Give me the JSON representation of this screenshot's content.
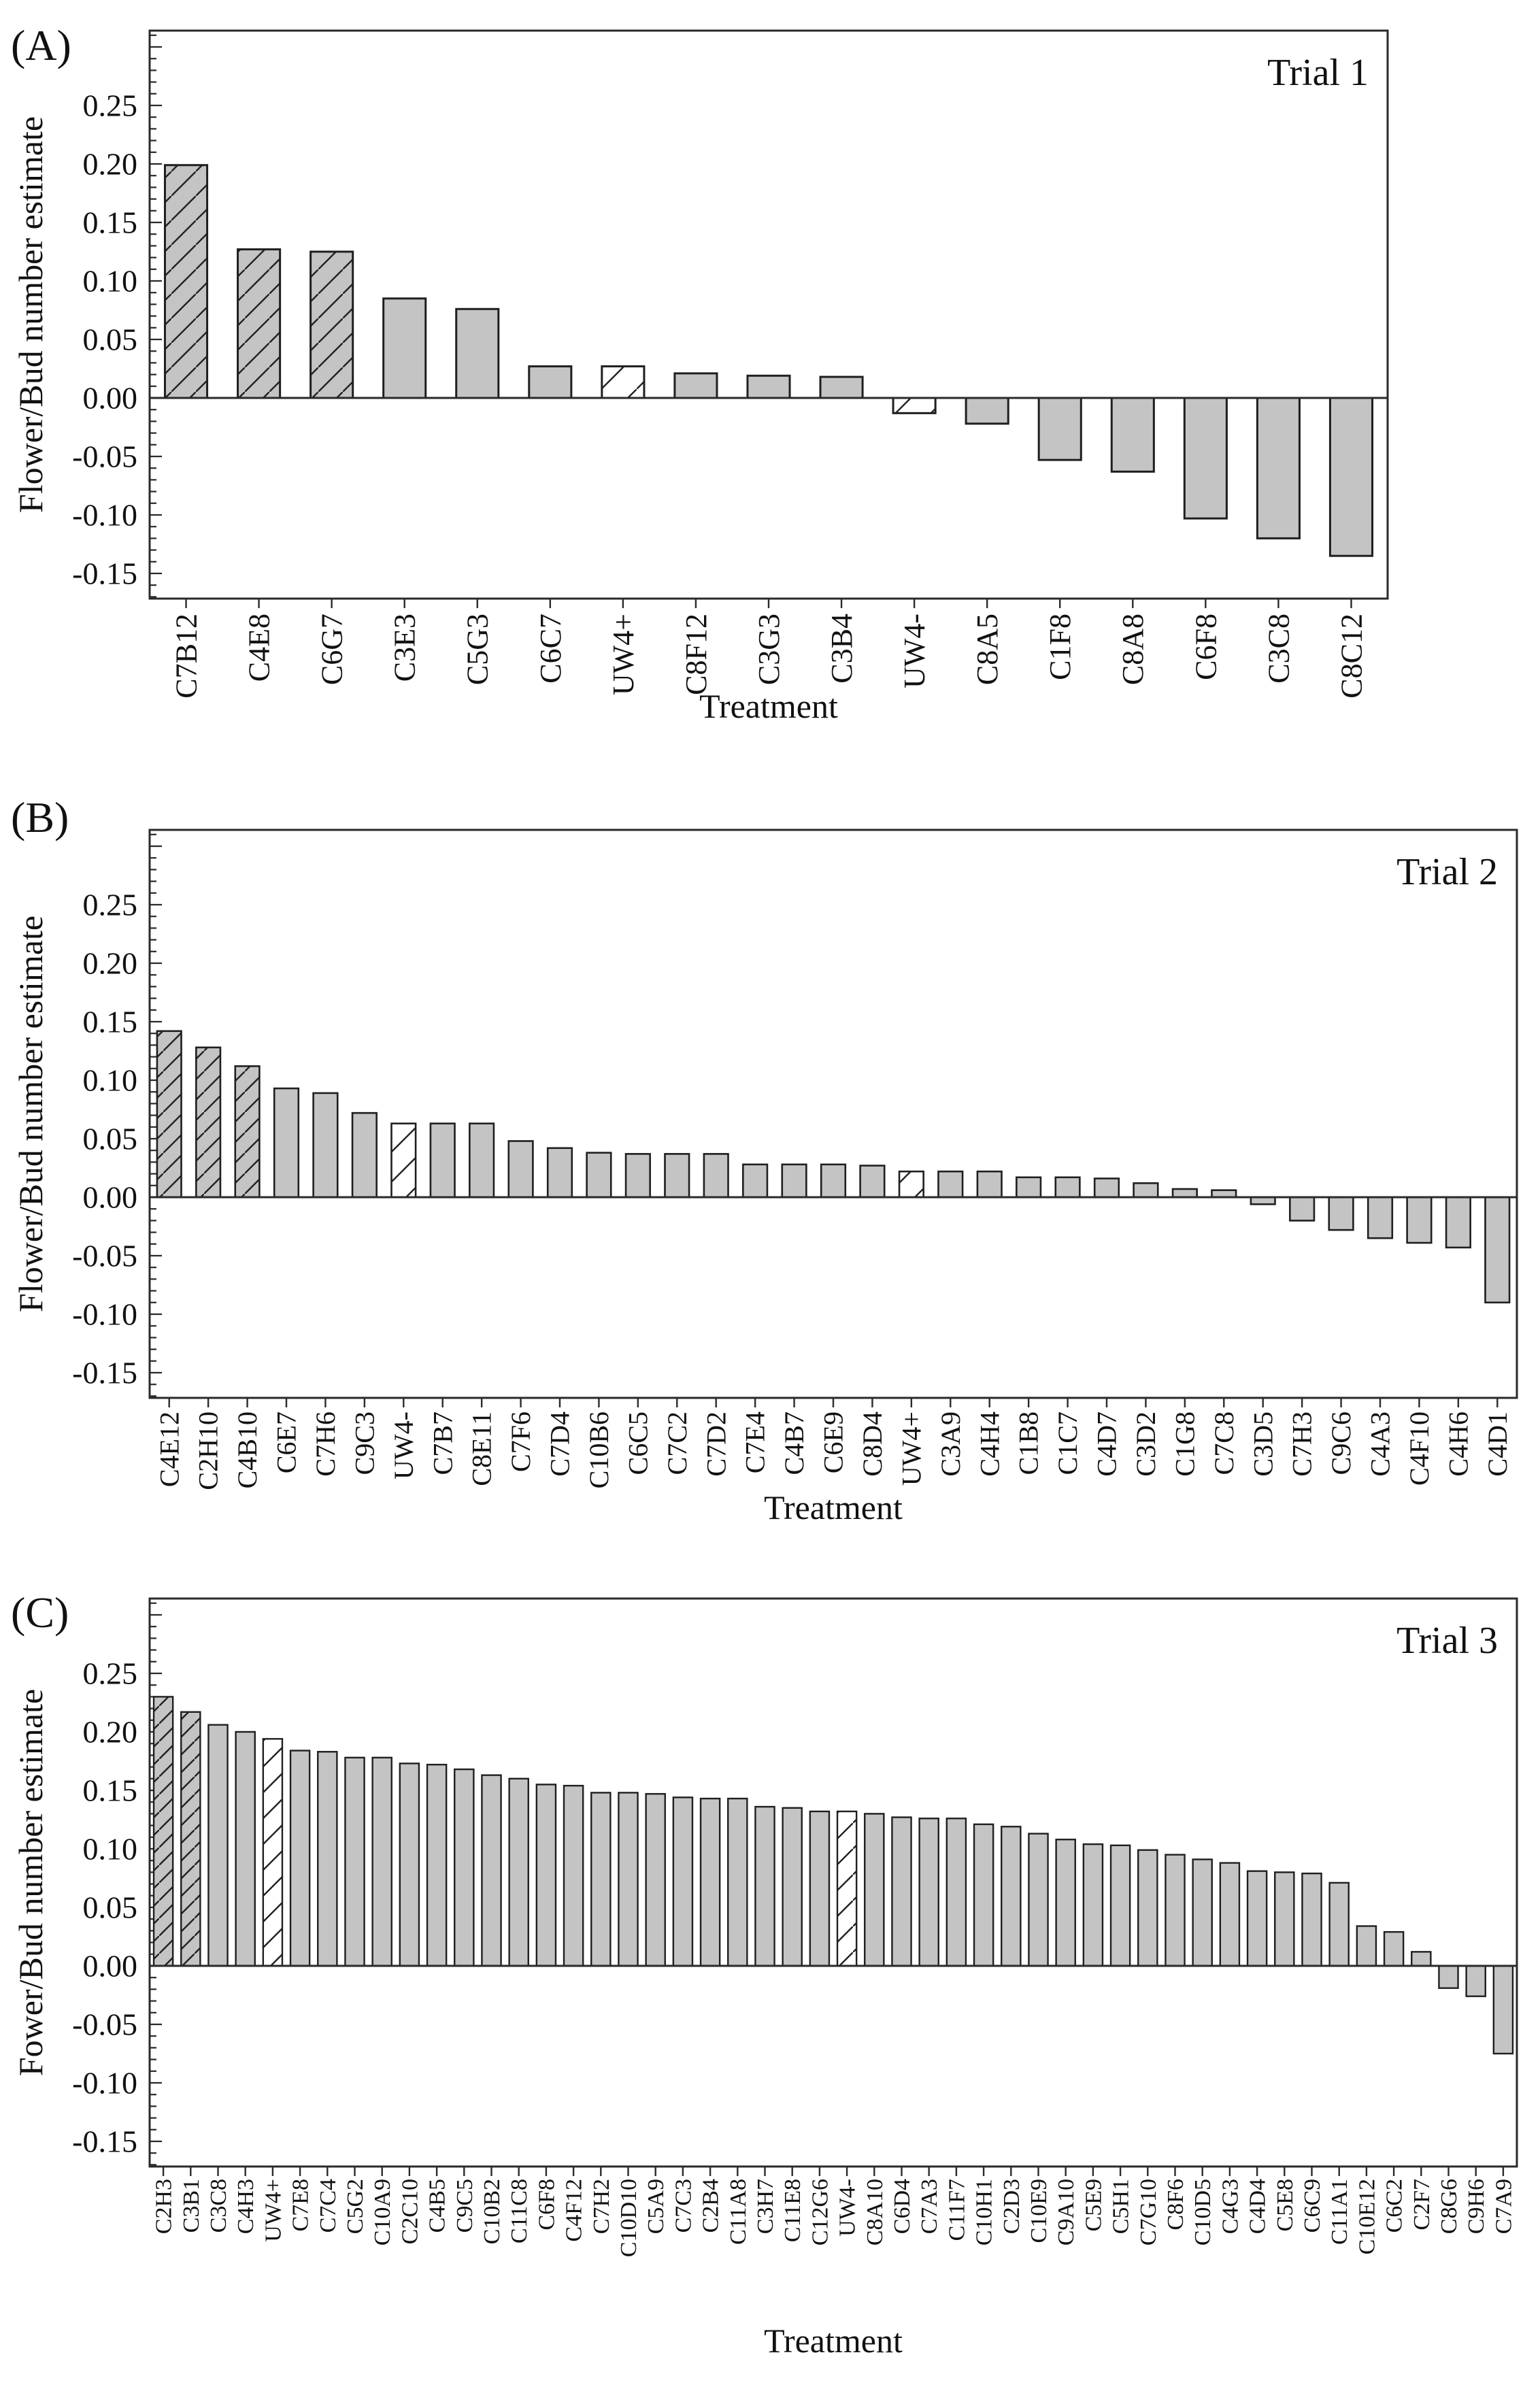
{
  "colors": {
    "background": "#ffffff",
    "bar_fill": "#c4c4c4",
    "bar_stroke": "#1f1f1f",
    "hatch_line": "#222222",
    "axis": "#2a2a2a",
    "text": "#111111"
  },
  "chart_data": [
    {
      "type": "bar",
      "panel_label": "(A)",
      "title": "Trial 1",
      "ylabel": "Flower/Bud number estimate",
      "xlabel": "Treatment",
      "ylim": [
        -0.17,
        0.31
      ],
      "grid": false,
      "legend": "none",
      "yticks": [
        "0.25",
        "0.20",
        "0.15",
        "0.10",
        "0.05",
        "0.00",
        "-0.05",
        "-0.10",
        "-0.15"
      ],
      "bars": [
        {
          "label": "C7B12",
          "value": 0.199,
          "style": "hatch-gray"
        },
        {
          "label": "C4E8",
          "value": 0.127,
          "style": "hatch-gray"
        },
        {
          "label": "C6G7",
          "value": 0.125,
          "style": "hatch-gray"
        },
        {
          "label": "C3E3",
          "value": 0.085,
          "style": "gray"
        },
        {
          "label": "C5G3",
          "value": 0.076,
          "style": "gray"
        },
        {
          "label": "C6C7",
          "value": 0.027,
          "style": "gray"
        },
        {
          "label": "UW4+",
          "value": 0.027,
          "style": "hatch-white"
        },
        {
          "label": "C8F12",
          "value": 0.021,
          "style": "gray"
        },
        {
          "label": "C3G3",
          "value": 0.019,
          "style": "gray"
        },
        {
          "label": "C3B4",
          "value": 0.018,
          "style": "gray"
        },
        {
          "label": "UW4-",
          "value": -0.013,
          "style": "hatch-white"
        },
        {
          "label": "C8A5",
          "value": -0.022,
          "style": "gray"
        },
        {
          "label": "C1F8",
          "value": -0.053,
          "style": "gray"
        },
        {
          "label": "C8A8",
          "value": -0.063,
          "style": "gray"
        },
        {
          "label": "C6F8",
          "value": -0.103,
          "style": "gray"
        },
        {
          "label": "C3C8",
          "value": -0.12,
          "style": "gray"
        },
        {
          "label": "C8C12",
          "value": -0.135,
          "style": "gray"
        }
      ]
    },
    {
      "type": "bar",
      "panel_label": "(B)",
      "title": "Trial 2",
      "ylabel": "Flower/Bud number estimate",
      "xlabel": "Treatment",
      "ylim": [
        -0.17,
        0.31
      ],
      "grid": false,
      "legend": "none",
      "yticks": [
        "0.25",
        "0.20",
        "0.15",
        "0.10",
        "0.05",
        "0.00",
        "-0.05",
        "-0.10",
        "-0.15"
      ],
      "bars": [
        {
          "label": "C4E12",
          "value": 0.142,
          "style": "hatch-gray"
        },
        {
          "label": "C2H10",
          "value": 0.128,
          "style": "hatch-gray"
        },
        {
          "label": "C4B10",
          "value": 0.112,
          "style": "hatch-gray"
        },
        {
          "label": "C6E7",
          "value": 0.093,
          "style": "gray"
        },
        {
          "label": "C7H6",
          "value": 0.089,
          "style": "gray"
        },
        {
          "label": "C9C3",
          "value": 0.072,
          "style": "gray"
        },
        {
          "label": "UW4-",
          "value": 0.063,
          "style": "hatch-white"
        },
        {
          "label": "C7B7",
          "value": 0.063,
          "style": "gray"
        },
        {
          "label": "C8E11",
          "value": 0.063,
          "style": "gray"
        },
        {
          "label": "C7F6",
          "value": 0.048,
          "style": "gray"
        },
        {
          "label": "C7D4",
          "value": 0.042,
          "style": "gray"
        },
        {
          "label": "C10B6",
          "value": 0.038,
          "style": "gray"
        },
        {
          "label": "C6C5",
          "value": 0.037,
          "style": "gray"
        },
        {
          "label": "C7C2",
          "value": 0.037,
          "style": "gray"
        },
        {
          "label": "C7D2",
          "value": 0.037,
          "style": "gray"
        },
        {
          "label": "C7E4",
          "value": 0.028,
          "style": "gray"
        },
        {
          "label": "C4B7",
          "value": 0.028,
          "style": "gray"
        },
        {
          "label": "C6E9",
          "value": 0.028,
          "style": "gray"
        },
        {
          "label": "C8D4",
          "value": 0.027,
          "style": "gray"
        },
        {
          "label": "UW4+",
          "value": 0.022,
          "style": "hatch-white"
        },
        {
          "label": "C3A9",
          "value": 0.022,
          "style": "gray"
        },
        {
          "label": "C4H4",
          "value": 0.022,
          "style": "gray"
        },
        {
          "label": "C1B8",
          "value": 0.017,
          "style": "gray"
        },
        {
          "label": "C1C7",
          "value": 0.017,
          "style": "gray"
        },
        {
          "label": "C4D7",
          "value": 0.016,
          "style": "gray"
        },
        {
          "label": "C3D2",
          "value": 0.012,
          "style": "gray"
        },
        {
          "label": "C1G8",
          "value": 0.007,
          "style": "gray"
        },
        {
          "label": "C7C8",
          "value": 0.006,
          "style": "gray"
        },
        {
          "label": "C3D5",
          "value": -0.006,
          "style": "gray"
        },
        {
          "label": "C7H3",
          "value": -0.02,
          "style": "gray"
        },
        {
          "label": "C9C6",
          "value": -0.028,
          "style": "gray"
        },
        {
          "label": "C4A3",
          "value": -0.035,
          "style": "gray"
        },
        {
          "label": "C4F10",
          "value": -0.039,
          "style": "gray"
        },
        {
          "label": "C4H6",
          "value": -0.043,
          "style": "gray"
        },
        {
          "label": "C4D1",
          "value": -0.09,
          "style": "gray"
        }
      ]
    },
    {
      "type": "bar",
      "panel_label": "(C)",
      "title": "Trial 3",
      "ylabel": "Fower/Bud number estimate",
      "xlabel": "Treatment",
      "ylim": [
        -0.17,
        0.31
      ],
      "grid": false,
      "legend": "none",
      "yticks": [
        "0.25",
        "0.20",
        "0.15",
        "0.10",
        "0.05",
        "0.00",
        "-0.05",
        "-0.10",
        "-0.15"
      ],
      "bars": [
        {
          "label": "C2H3",
          "value": 0.23,
          "style": "hatch-gray"
        },
        {
          "label": "C3B1",
          "value": 0.217,
          "style": "hatch-gray"
        },
        {
          "label": "C3C8",
          "value": 0.206,
          "style": "gray"
        },
        {
          "label": "C4H3",
          "value": 0.2,
          "style": "gray"
        },
        {
          "label": "UW4+",
          "value": 0.194,
          "style": "hatch-white"
        },
        {
          "label": "C7E8",
          "value": 0.184,
          "style": "gray"
        },
        {
          "label": "C7C4",
          "value": 0.183,
          "style": "gray"
        },
        {
          "label": "C5G2",
          "value": 0.178,
          "style": "gray"
        },
        {
          "label": "C10A9",
          "value": 0.178,
          "style": "gray"
        },
        {
          "label": "C2C10",
          "value": 0.173,
          "style": "gray"
        },
        {
          "label": "C4B5",
          "value": 0.172,
          "style": "gray"
        },
        {
          "label": "C9C5",
          "value": 0.168,
          "style": "gray"
        },
        {
          "label": "C10B2",
          "value": 0.163,
          "style": "gray"
        },
        {
          "label": "C11C8",
          "value": 0.16,
          "style": "gray"
        },
        {
          "label": "C6F8",
          "value": 0.155,
          "style": "gray"
        },
        {
          "label": "C4F12",
          "value": 0.154,
          "style": "gray"
        },
        {
          "label": "C7H2",
          "value": 0.148,
          "style": "gray"
        },
        {
          "label": "C10D10",
          "value": 0.148,
          "style": "gray"
        },
        {
          "label": "C5A9",
          "value": 0.147,
          "style": "gray"
        },
        {
          "label": "C7C3",
          "value": 0.144,
          "style": "gray"
        },
        {
          "label": "C2B4",
          "value": 0.143,
          "style": "gray"
        },
        {
          "label": "C11A8",
          "value": 0.143,
          "style": "gray"
        },
        {
          "label": "C3H7",
          "value": 0.136,
          "style": "gray"
        },
        {
          "label": "C11E8",
          "value": 0.135,
          "style": "gray"
        },
        {
          "label": "C12G6",
          "value": 0.132,
          "style": "gray"
        },
        {
          "label": "UW4-",
          "value": 0.132,
          "style": "hatch-white"
        },
        {
          "label": "C8A10",
          "value": 0.13,
          "style": "gray"
        },
        {
          "label": "C6D4",
          "value": 0.127,
          "style": "gray"
        },
        {
          "label": "C7A3",
          "value": 0.126,
          "style": "gray"
        },
        {
          "label": "C11F7",
          "value": 0.126,
          "style": "gray"
        },
        {
          "label": "C10H1",
          "value": 0.121,
          "style": "gray"
        },
        {
          "label": "C2D3",
          "value": 0.119,
          "style": "gray"
        },
        {
          "label": "C10E9",
          "value": 0.113,
          "style": "gray"
        },
        {
          "label": "C9A10",
          "value": 0.108,
          "style": "gray"
        },
        {
          "label": "C5E9",
          "value": 0.104,
          "style": "gray"
        },
        {
          "label": "C5H1",
          "value": 0.103,
          "style": "gray"
        },
        {
          "label": "C7G10",
          "value": 0.099,
          "style": "gray"
        },
        {
          "label": "C8F6",
          "value": 0.095,
          "style": "gray"
        },
        {
          "label": "C10D5",
          "value": 0.091,
          "style": "gray"
        },
        {
          "label": "C4G3",
          "value": 0.088,
          "style": "gray"
        },
        {
          "label": "C4D4",
          "value": 0.081,
          "style": "gray"
        },
        {
          "label": "C5E8",
          "value": 0.08,
          "style": "gray"
        },
        {
          "label": "C6C9",
          "value": 0.079,
          "style": "gray"
        },
        {
          "label": "C11A1",
          "value": 0.071,
          "style": "gray"
        },
        {
          "label": "C10E12",
          "value": 0.034,
          "style": "gray"
        },
        {
          "label": "C6C2",
          "value": 0.029,
          "style": "gray"
        },
        {
          "label": "C2F7",
          "value": 0.012,
          "style": "gray"
        },
        {
          "label": "C8G6",
          "value": -0.019,
          "style": "gray"
        },
        {
          "label": "C9H6",
          "value": -0.026,
          "style": "gray"
        },
        {
          "label": "C7A9",
          "value": -0.075,
          "style": "gray"
        }
      ]
    }
  ]
}
